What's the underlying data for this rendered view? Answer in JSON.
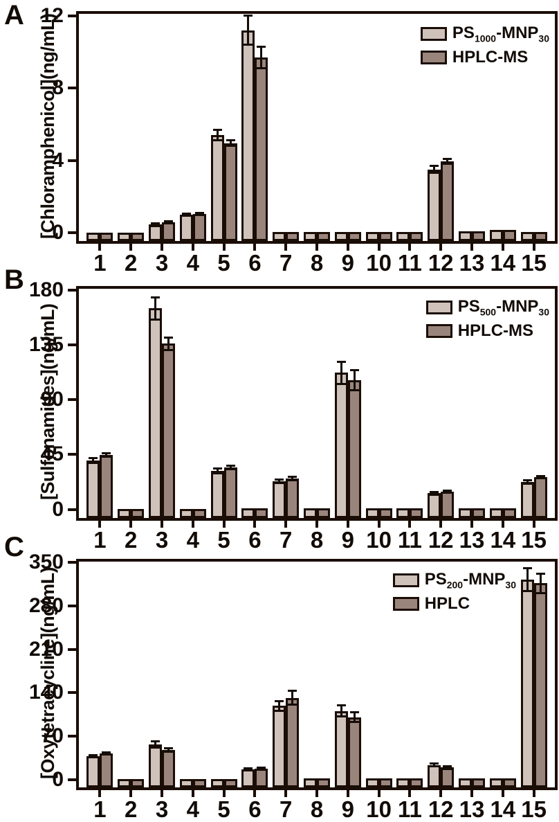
{
  "chart_data": {
    "type": "bar",
    "categories": [
      "1",
      "2",
      "3",
      "4",
      "5",
      "6",
      "7",
      "8",
      "9",
      "10",
      "11",
      "12",
      "13",
      "14",
      "15"
    ],
    "colors": {
      "light": "#cfc2bb",
      "dark": "#9a857c",
      "outline": "#1a0d05",
      "error": "#140c06",
      "text": "#120b06"
    },
    "legend_position": "top-right-inside",
    "grid": "off",
    "panels": [
      {
        "letter": "A",
        "ylabel": "[Chloramphenicol](ng/mL)",
        "ylim": [
          -0.45,
          12.1
        ],
        "yticks": [
          0,
          4,
          8,
          12
        ],
        "series": [
          {
            "name": "PS1000-MNP30",
            "parts": [
              [
                "PS",
                false
              ],
              [
                "1000",
                true
              ],
              [
                "-MNP",
                false
              ],
              [
                "30",
                true
              ]
            ],
            "key": "light",
            "values": [
              0,
              0,
              0.45,
              1.0,
              5.4,
              11.2,
              0.05,
              0.05,
              0.05,
              0.05,
              0.05,
              3.5,
              0.1,
              0.15,
              0.05
            ],
            "errors": [
              0,
              0,
              0.06,
              0.06,
              0.3,
              0.8,
              0,
              0,
              0,
              0,
              0,
              0.2,
              0,
              0,
              0
            ]
          },
          {
            "name": "HPLC-MS",
            "parts": [
              [
                "HPLC-MS",
                false
              ]
            ],
            "key": "dark",
            "values": [
              0,
              0,
              0.58,
              1.05,
              4.95,
              9.7,
              0.05,
              0.05,
              0.05,
              0.05,
              0.05,
              3.95,
              0.1,
              0.15,
              0.05
            ],
            "errors": [
              0,
              0,
              0.06,
              0.06,
              0.15,
              0.6,
              0,
              0,
              0,
              0,
              0,
              0.15,
              0,
              0,
              0
            ]
          }
        ]
      },
      {
        "letter": "B",
        "ylabel": "[Sulfonamides](ng/mL)",
        "ylim": [
          -7,
          181
        ],
        "yticks": [
          0,
          45,
          90,
          135,
          180
        ],
        "series": [
          {
            "name": "PS500-MNP30",
            "parts": [
              [
                "PS",
                false
              ],
              [
                "500",
                true
              ],
              [
                "-MNP",
                false
              ],
              [
                "30",
                true
              ]
            ],
            "key": "light",
            "values": [
              40,
              0.3,
              165,
              0.3,
              31.5,
              1,
              23,
              0.8,
              112,
              0.8,
              0.8,
              13.3,
              0.8,
              0.8,
              22.7
            ],
            "errors": [
              2,
              0,
              9,
              0,
              2,
              0,
              1.5,
              0,
              9,
              0,
              0,
              1,
              0,
              0,
              1.5
            ]
          },
          {
            "name": "HPLC-MS",
            "parts": [
              [
                "HPLC-MS",
                false
              ]
            ],
            "key": "dark",
            "values": [
              44.5,
              0.3,
              136,
              0.3,
              34.5,
              1.2,
              25.5,
              0.8,
              106,
              0.8,
              0.8,
              14.5,
              0.8,
              0.8,
              26.5
            ],
            "errors": [
              1.5,
              0,
              5,
              0,
              1.5,
              0,
              1.5,
              0,
              8,
              0,
              0,
              1,
              0,
              0,
              1
            ]
          }
        ]
      },
      {
        "letter": "C",
        "ylabel": "[Oxytetracycline](ng/mL)",
        "ylim": [
          -12,
          351
        ],
        "yticks": [
          0,
          70,
          140,
          210,
          280,
          350
        ],
        "series": [
          {
            "name": "PS200-MNP30",
            "parts": [
              [
                "PS",
                false
              ],
              [
                "200",
                true
              ],
              [
                "-MNP",
                false
              ],
              [
                "30",
                true
              ]
            ],
            "key": "light",
            "values": [
              38,
              1,
              57,
              1,
              1,
              17,
              119,
              2,
              111,
              2,
              2,
              24,
              2,
              2,
              322
            ],
            "errors": [
              2,
              0,
              5,
              0,
              0,
              1.5,
              8,
              0,
              9,
              0,
              0,
              2,
              0,
              0,
              18
            ]
          },
          {
            "name": "HPLC",
            "parts": [
              [
                "HPLC",
                false
              ]
            ],
            "key": "dark",
            "values": [
              43,
              1,
              48,
              1,
              1,
              18,
              132,
              2,
              101,
              2,
              2,
              20,
              2,
              2,
              316
            ],
            "errors": [
              1.5,
              0,
              2.5,
              0,
              0,
              1.5,
              11,
              0,
              8,
              0,
              0,
              2,
              0,
              0,
              16
            ]
          }
        ]
      }
    ]
  }
}
